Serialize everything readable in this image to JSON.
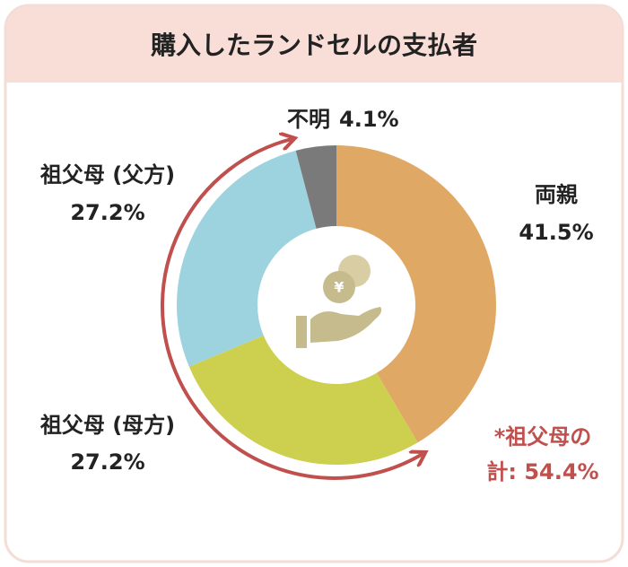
{
  "chart_data": {
    "type": "donut",
    "title": "購入したランドセルの支払者",
    "categories": [
      "両親",
      "祖父母 (母方)",
      "祖父母 (父方)",
      "不明"
    ],
    "values": [
      41.5,
      27.2,
      27.2,
      4.1
    ],
    "value_labels": [
      "41.5%",
      "27.2%",
      "27.2%",
      "4.1%"
    ],
    "colors": [
      "#e0a865",
      "#ccd04e",
      "#9dd3de",
      "#7a7a7a"
    ],
    "annotation": [
      "*祖父母の",
      "計: 54.4%"
    ]
  }
}
